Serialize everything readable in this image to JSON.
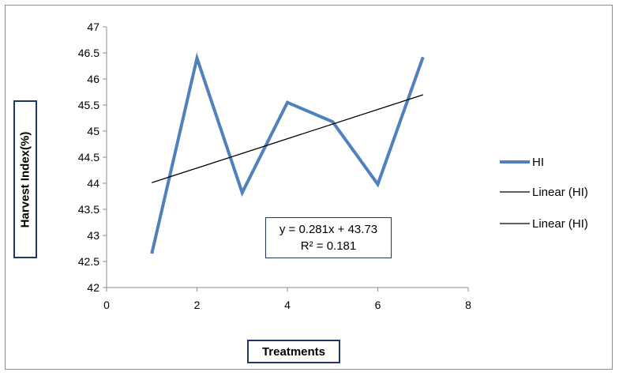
{
  "chart_data": {
    "type": "line",
    "xlabel": "Treatments",
    "ylabel": "Harvest Index(%)",
    "xlim": [
      0,
      8
    ],
    "ylim": [
      42,
      47
    ],
    "xticks": [
      "0",
      "2",
      "4",
      "6",
      "8"
    ],
    "yticks": [
      "42",
      "42.5",
      "43",
      "43.5",
      "44",
      "44.5",
      "45",
      "45.5",
      "46",
      "46.5",
      "47"
    ],
    "grid": false,
    "legend_position": "right",
    "series": [
      {
        "name": "HI",
        "color": "#4f81bd",
        "x": [
          1,
          2,
          3,
          4,
          5,
          6,
          7
        ],
        "y": [
          42.65,
          46.4,
          43.82,
          45.55,
          45.18,
          43.98,
          46.42
        ]
      }
    ],
    "trendline": {
      "slope": 0.281,
      "intercept": 43.73,
      "x_range": [
        1,
        7
      ],
      "color": "#000000"
    },
    "legend": [
      "HI",
      "Linear (HI)",
      "Linear (HI)"
    ],
    "annotation": {
      "equation": "y = 0.281x + 43.73",
      "r_squared": "R² = 0.181"
    }
  }
}
